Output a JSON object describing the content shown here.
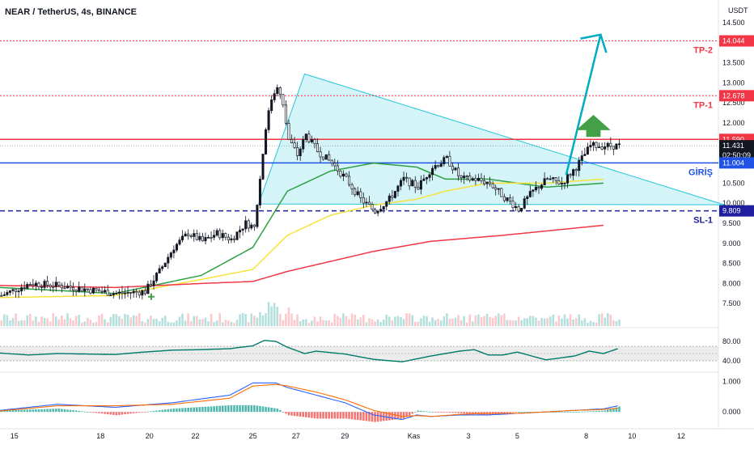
{
  "header": {
    "title": "NEAR / TetherUS, 4s, BINANCE",
    "currency": "USDT"
  },
  "colors": {
    "up": "#131722",
    "down": "#ffffff",
    "tp": "#f23645",
    "entry": "#1e53e5",
    "sl": "#1e1e9e",
    "triangle_fill": "#b2ebf2",
    "triangle_edge": "#26c6da",
    "ma_green": "#2ea043",
    "ma_yellow": "#f5e33a",
    "ma_red": "#f23645",
    "rsi": "#00796b",
    "macd": "#2962ff",
    "signal": "#ff6d00",
    "arrow_up": "#43a047",
    "arrow_target": "#00acc1"
  },
  "levels": {
    "tp2": {
      "label": "TP-2",
      "value": 14.044,
      "value_text": "14.044"
    },
    "tp1": {
      "label": "TP-1",
      "value": 12.678,
      "value_text": "12.678"
    },
    "resistance": {
      "value": 11.59,
      "value_text": "11.590"
    },
    "last": {
      "value": 11.431,
      "value_text": "11.431",
      "countdown": "02:50:09"
    },
    "entry": {
      "label": "GİRİŞ",
      "value": 11.004,
      "value_text": "11.004"
    },
    "sl1": {
      "label": "SL-1",
      "value": 9.809,
      "value_text": "9.809"
    }
  },
  "chart_data": {
    "type": "candlestick",
    "title": "NEAR / TetherUS, 4s, BINANCE",
    "price_axis": {
      "range": [
        7.0,
        14.7
      ],
      "ticks": [
        "14.500",
        "13.500",
        "13.000",
        "12.500",
        "12.000",
        "10.500",
        "10.000",
        "9.500",
        "9.000",
        "8.500",
        "8.000",
        "7.500"
      ],
      "tick_values": [
        14.5,
        13.5,
        13.0,
        12.5,
        12.0,
        10.5,
        10.0,
        9.5,
        9.0,
        8.5,
        8.0,
        7.5
      ]
    },
    "time_axis": {
      "labels": [
        "15",
        "18",
        "20",
        "22",
        "25",
        "27",
        "29",
        "Kas",
        "3",
        "5",
        "8",
        "10",
        "12"
      ],
      "label_bars": [
        5,
        35,
        52,
        68,
        88,
        103,
        120,
        144,
        163,
        180,
        204,
        220,
        237
      ],
      "bar_count": 250
    },
    "candles_approx": {
      "bars": [
        0,
        10,
        20,
        30,
        40,
        50,
        55,
        60,
        65,
        70,
        75,
        80,
        85,
        88,
        90,
        92,
        94,
        96,
        98,
        100,
        103,
        106,
        110,
        115,
        120,
        125,
        130,
        135,
        140,
        145,
        150,
        155,
        160,
        165,
        170,
        175,
        180,
        185,
        190,
        195,
        200,
        205,
        210,
        215
      ],
      "close": [
        7.7,
        8.0,
        7.95,
        7.85,
        7.75,
        7.8,
        8.3,
        8.9,
        9.25,
        9.05,
        9.25,
        9.1,
        9.5,
        9.4,
        10.6,
        11.9,
        12.6,
        12.95,
        12.4,
        11.6,
        11.2,
        11.7,
        11.3,
        11.0,
        10.6,
        10.1,
        9.8,
        10.1,
        10.6,
        10.4,
        10.9,
        11.1,
        10.6,
        10.6,
        10.5,
        10.15,
        9.85,
        10.3,
        10.6,
        10.5,
        10.9,
        11.43,
        11.43,
        11.43
      ]
    },
    "series": [
      {
        "name": "",
        "color": "#2ea043",
        "bars": [
          0,
          40,
          70,
          88,
          100,
          115,
          130,
          145,
          155,
          170,
          190,
          210
        ],
        "values": [
          7.9,
          7.75,
          8.2,
          8.9,
          10.3,
          10.8,
          11.0,
          10.9,
          10.6,
          10.6,
          10.4,
          10.5
        ]
      },
      {
        "name": "",
        "color": "#f5e33a",
        "bars": [
          0,
          40,
          70,
          88,
          100,
          115,
          130,
          145,
          155,
          170,
          190,
          210
        ],
        "values": [
          7.65,
          7.7,
          8.1,
          8.35,
          9.2,
          9.7,
          9.95,
          10.1,
          10.3,
          10.5,
          10.5,
          10.6
        ]
      },
      {
        "name": "",
        "color": "#f23645",
        "bars": [
          0,
          40,
          70,
          88,
          100,
          130,
          150,
          175,
          210
        ],
        "values": [
          7.95,
          7.9,
          8.0,
          8.05,
          8.3,
          8.8,
          9.05,
          9.2,
          9.45
        ]
      }
    ],
    "rsi": {
      "ticks": [
        "80.00",
        "40.00"
      ],
      "tick_values": [
        80,
        40
      ],
      "band": [
        40,
        70
      ],
      "range": [
        20,
        100
      ],
      "bars": [
        0,
        10,
        20,
        30,
        40,
        50,
        60,
        70,
        80,
        88,
        92,
        96,
        100,
        106,
        110,
        120,
        130,
        140,
        145,
        150,
        160,
        165,
        170,
        175,
        180,
        190,
        200,
        205,
        210,
        215
      ],
      "values": [
        56,
        52,
        55,
        54,
        53,
        58,
        62,
        63,
        65,
        71,
        82,
        80,
        68,
        55,
        60,
        54,
        43,
        38,
        44,
        50,
        60,
        63,
        52,
        52,
        58,
        42,
        50,
        60,
        55,
        65
      ]
    },
    "macd": {
      "ticks": [
        "1.000",
        "0.000"
      ],
      "tick_values": [
        1.0,
        0.0
      ],
      "range": [
        -0.5,
        1.25
      ],
      "bars": [
        0,
        20,
        40,
        60,
        80,
        88,
        96,
        100,
        110,
        120,
        130,
        140,
        145,
        150,
        160,
        170,
        180,
        190,
        200,
        210,
        215
      ],
      "macd": [
        0.05,
        0.25,
        0.15,
        0.3,
        0.55,
        0.95,
        0.95,
        0.8,
        0.55,
        0.3,
        -0.1,
        -0.25,
        -0.1,
        -0.15,
        -0.1,
        -0.1,
        -0.05,
        0.0,
        0.05,
        0.1,
        0.2
      ],
      "signal": [
        0.03,
        0.2,
        0.2,
        0.25,
        0.45,
        0.85,
        0.9,
        0.85,
        0.65,
        0.4,
        0.05,
        -0.15,
        -0.12,
        -0.15,
        -0.08,
        -0.05,
        -0.05,
        0.0,
        0.05,
        0.08,
        0.12
      ]
    }
  }
}
